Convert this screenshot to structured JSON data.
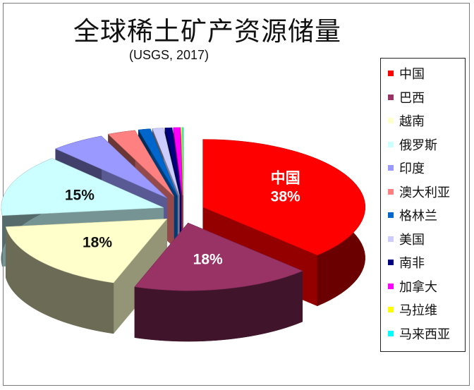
{
  "title": "全球稀土矿产资源储量",
  "subtitle": "(USGS, 2017)",
  "chart_data": {
    "type": "pie",
    "title": "全球稀土矿产资源储量",
    "subtitle": "(USGS, 2017)",
    "legend_position": "right",
    "style": "3d-exploded",
    "slices": [
      {
        "label": "中国",
        "value": 38,
        "color": "#ff0000",
        "shown_label": "38%"
      },
      {
        "label": "巴西",
        "value": 18,
        "color": "#993366",
        "shown_label": "18%"
      },
      {
        "label": "越南",
        "value": 18,
        "color": "#ffffcc",
        "shown_label": "18%"
      },
      {
        "label": "俄罗斯",
        "value": 15,
        "color": "#ccffff",
        "shown_label": "15%"
      },
      {
        "label": "印度",
        "value": 5.5,
        "color": "#9999ff"
      },
      {
        "label": "澳大利亚",
        "value": 2.8,
        "color": "#ff8080"
      },
      {
        "label": "格林兰",
        "value": 1.2,
        "color": "#0066cc"
      },
      {
        "label": "美国",
        "value": 1.1,
        "color": "#ccccff"
      },
      {
        "label": "南非",
        "value": 0.7,
        "color": "#000080"
      },
      {
        "label": "加拿大",
        "value": 0.7,
        "color": "#ff00ff"
      },
      {
        "label": "马拉维",
        "value": 0.1,
        "color": "#ffff00"
      },
      {
        "label": "马来西亚",
        "value": 0.1,
        "color": "#00ffff"
      }
    ]
  }
}
